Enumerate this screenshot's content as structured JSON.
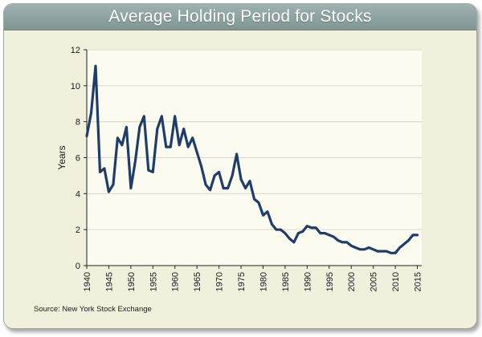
{
  "title": "Average Holding Period for Stocks",
  "source": "Source: New York Stock Exchange",
  "colors": {
    "frame_bg": "#f1f0dc",
    "title_bar": "#8ea4a2",
    "plot_bg": "#fbfbef",
    "grid": "#d9d8c6",
    "line": "#1f3d6b"
  },
  "chart_data": {
    "type": "line",
    "title": "Average Holding Period for Stocks",
    "xlabel": "",
    "ylabel": "Years",
    "xlim": [
      1940,
      2016
    ],
    "ylim": [
      0,
      12
    ],
    "grid": "horizontal",
    "x_ticks": [
      "1940",
      "1945",
      "1950",
      "1955",
      "1960",
      "1965",
      "1970",
      "1975",
      "1980",
      "1985",
      "1990",
      "1995",
      "2000",
      "2005",
      "2010",
      "2015"
    ],
    "y_ticks": [
      "0",
      "2",
      "4",
      "6",
      "8",
      "10",
      "12"
    ],
    "series": [
      {
        "name": "Average holding period (years)",
        "x": [
          1940,
          1941,
          1942,
          1943,
          1944,
          1945,
          1946,
          1947,
          1948,
          1949,
          1950,
          1951,
          1952,
          1953,
          1954,
          1955,
          1956,
          1957,
          1958,
          1959,
          1960,
          1961,
          1962,
          1963,
          1964,
          1965,
          1966,
          1967,
          1968,
          1969,
          1970,
          1971,
          1972,
          1973,
          1974,
          1975,
          1976,
          1977,
          1978,
          1979,
          1980,
          1981,
          1982,
          1983,
          1984,
          1985,
          1986,
          1987,
          1988,
          1989,
          1990,
          1991,
          1992,
          1993,
          1994,
          1995,
          1996,
          1997,
          1998,
          1999,
          2000,
          2001,
          2002,
          2003,
          2004,
          2005,
          2006,
          2007,
          2008,
          2009,
          2010,
          2011,
          2012,
          2013,
          2014,
          2015
        ],
        "values": [
          7.2,
          8.5,
          11.1,
          5.2,
          5.4,
          4.1,
          4.5,
          7.1,
          6.7,
          7.7,
          4.3,
          5.8,
          7.7,
          8.3,
          5.3,
          5.2,
          7.6,
          8.3,
          6.6,
          6.6,
          8.3,
          6.7,
          7.6,
          6.6,
          7.1,
          6.3,
          5.5,
          4.5,
          4.2,
          5.0,
          5.2,
          4.3,
          4.3,
          5.0,
          6.2,
          4.8,
          4.3,
          4.7,
          3.7,
          3.5,
          2.8,
          3.0,
          2.3,
          2.0,
          2.0,
          1.8,
          1.5,
          1.3,
          1.8,
          1.9,
          2.2,
          2.1,
          2.1,
          1.8,
          1.8,
          1.7,
          1.6,
          1.4,
          1.3,
          1.3,
          1.1,
          1.0,
          0.9,
          0.9,
          1.0,
          0.9,
          0.8,
          0.8,
          0.8,
          0.7,
          0.7,
          1.0,
          1.2,
          1.4,
          1.7,
          1.7
        ]
      }
    ]
  }
}
